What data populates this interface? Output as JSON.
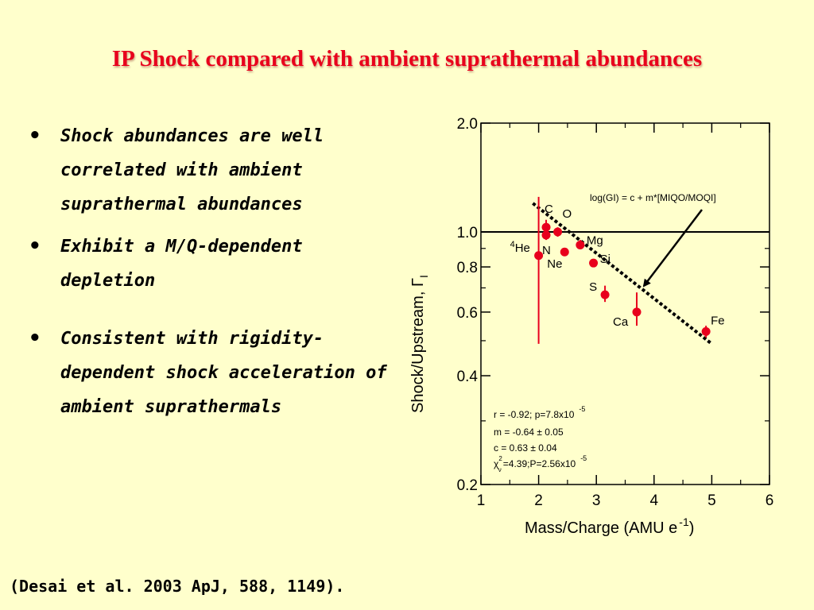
{
  "title": "IP Shock compared with ambient suprathermal abundances",
  "bullets": [
    "Shock abundances are well correlated with ambient suprathermal abundances",
    "Exhibit a M/Q-dependent depletion",
    "Consistent with rigidity-dependent shock acceleration of ambient suprathermals"
  ],
  "bullet_glyph": "•",
  "citation": "(Desai et al. 2003 ApJ, 588, 1149).",
  "chart_data": {
    "type": "scatter",
    "xlabel": "Mass/Charge (AMU e",
    "xlabel_sup": "-1",
    "xlabel_end": ")",
    "ylabel": "Shock/Upstream, Γ",
    "ylabel_sub": "I",
    "xlim": [
      1,
      6
    ],
    "ylim": [
      0.2,
      2.0
    ],
    "yscale": "log",
    "x_ticks": [
      1,
      2,
      3,
      4,
      5,
      6
    ],
    "x_tick_labels": [
      "1",
      "2",
      "3",
      "4",
      "5",
      "6"
    ],
    "y_ticks": [
      0.2,
      0.4,
      0.6,
      0.8,
      1.0,
      2.0
    ],
    "y_tick_labels": [
      "0.2",
      "0.4",
      "0.6",
      "0.8",
      "1.0",
      "2.0"
    ],
    "marker_color": "#e8001c",
    "points": [
      {
        "label": "He",
        "label_sup": "4",
        "x": 2.0,
        "y": 0.86,
        "err_low": 0.49,
        "err_high": 1.25
      },
      {
        "label": "C",
        "x": 2.13,
        "y": 1.03,
        "err_low": 0.99,
        "err_high": 1.08
      },
      {
        "label": "N",
        "x": 2.13,
        "y": 0.98,
        "err_low": 0.95,
        "err_high": 1.01
      },
      {
        "label": "O",
        "x": 2.33,
        "y": 1.0,
        "err_low": 0.97,
        "err_high": 1.03
      },
      {
        "label": "Ne",
        "x": 2.45,
        "y": 0.88,
        "err_low": 0.86,
        "err_high": 0.9
      },
      {
        "label": "Mg",
        "x": 2.72,
        "y": 0.92,
        "err_low": 0.9,
        "err_high": 0.95
      },
      {
        "label": "Si",
        "x": 2.95,
        "y": 0.82,
        "err_low": 0.8,
        "err_high": 0.84
      },
      {
        "label": "S",
        "x": 3.15,
        "y": 0.67,
        "err_low": 0.64,
        "err_high": 0.71
      },
      {
        "label": "Ca",
        "x": 3.7,
        "y": 0.6,
        "err_low": 0.55,
        "err_high": 0.68
      },
      {
        "label": "Fe",
        "x": 4.9,
        "y": 0.53,
        "err_low": 0.51,
        "err_high": 0.55
      }
    ],
    "fit_line": {
      "x": [
        1.9,
        5.0
      ],
      "y": [
        1.2,
        0.49
      ]
    },
    "reference_line_y": 1.0,
    "annotations": {
      "fit_formula": "log(GI) = c + m*[MIQO/MOQI]",
      "stats": {
        "r_line": "r = -0.92; p=7.8x10",
        "r_exp": "-5",
        "m_line": "m = -0.64  ± 0.05",
        "c_line": "c = 0.63  ± 0.04",
        "chi_sym": "χ",
        "chi_sup": "2",
        "chi_sub": "ν",
        "chi_line": "=4.39;P=2.56x10",
        "chi_exp": "-5"
      }
    }
  }
}
